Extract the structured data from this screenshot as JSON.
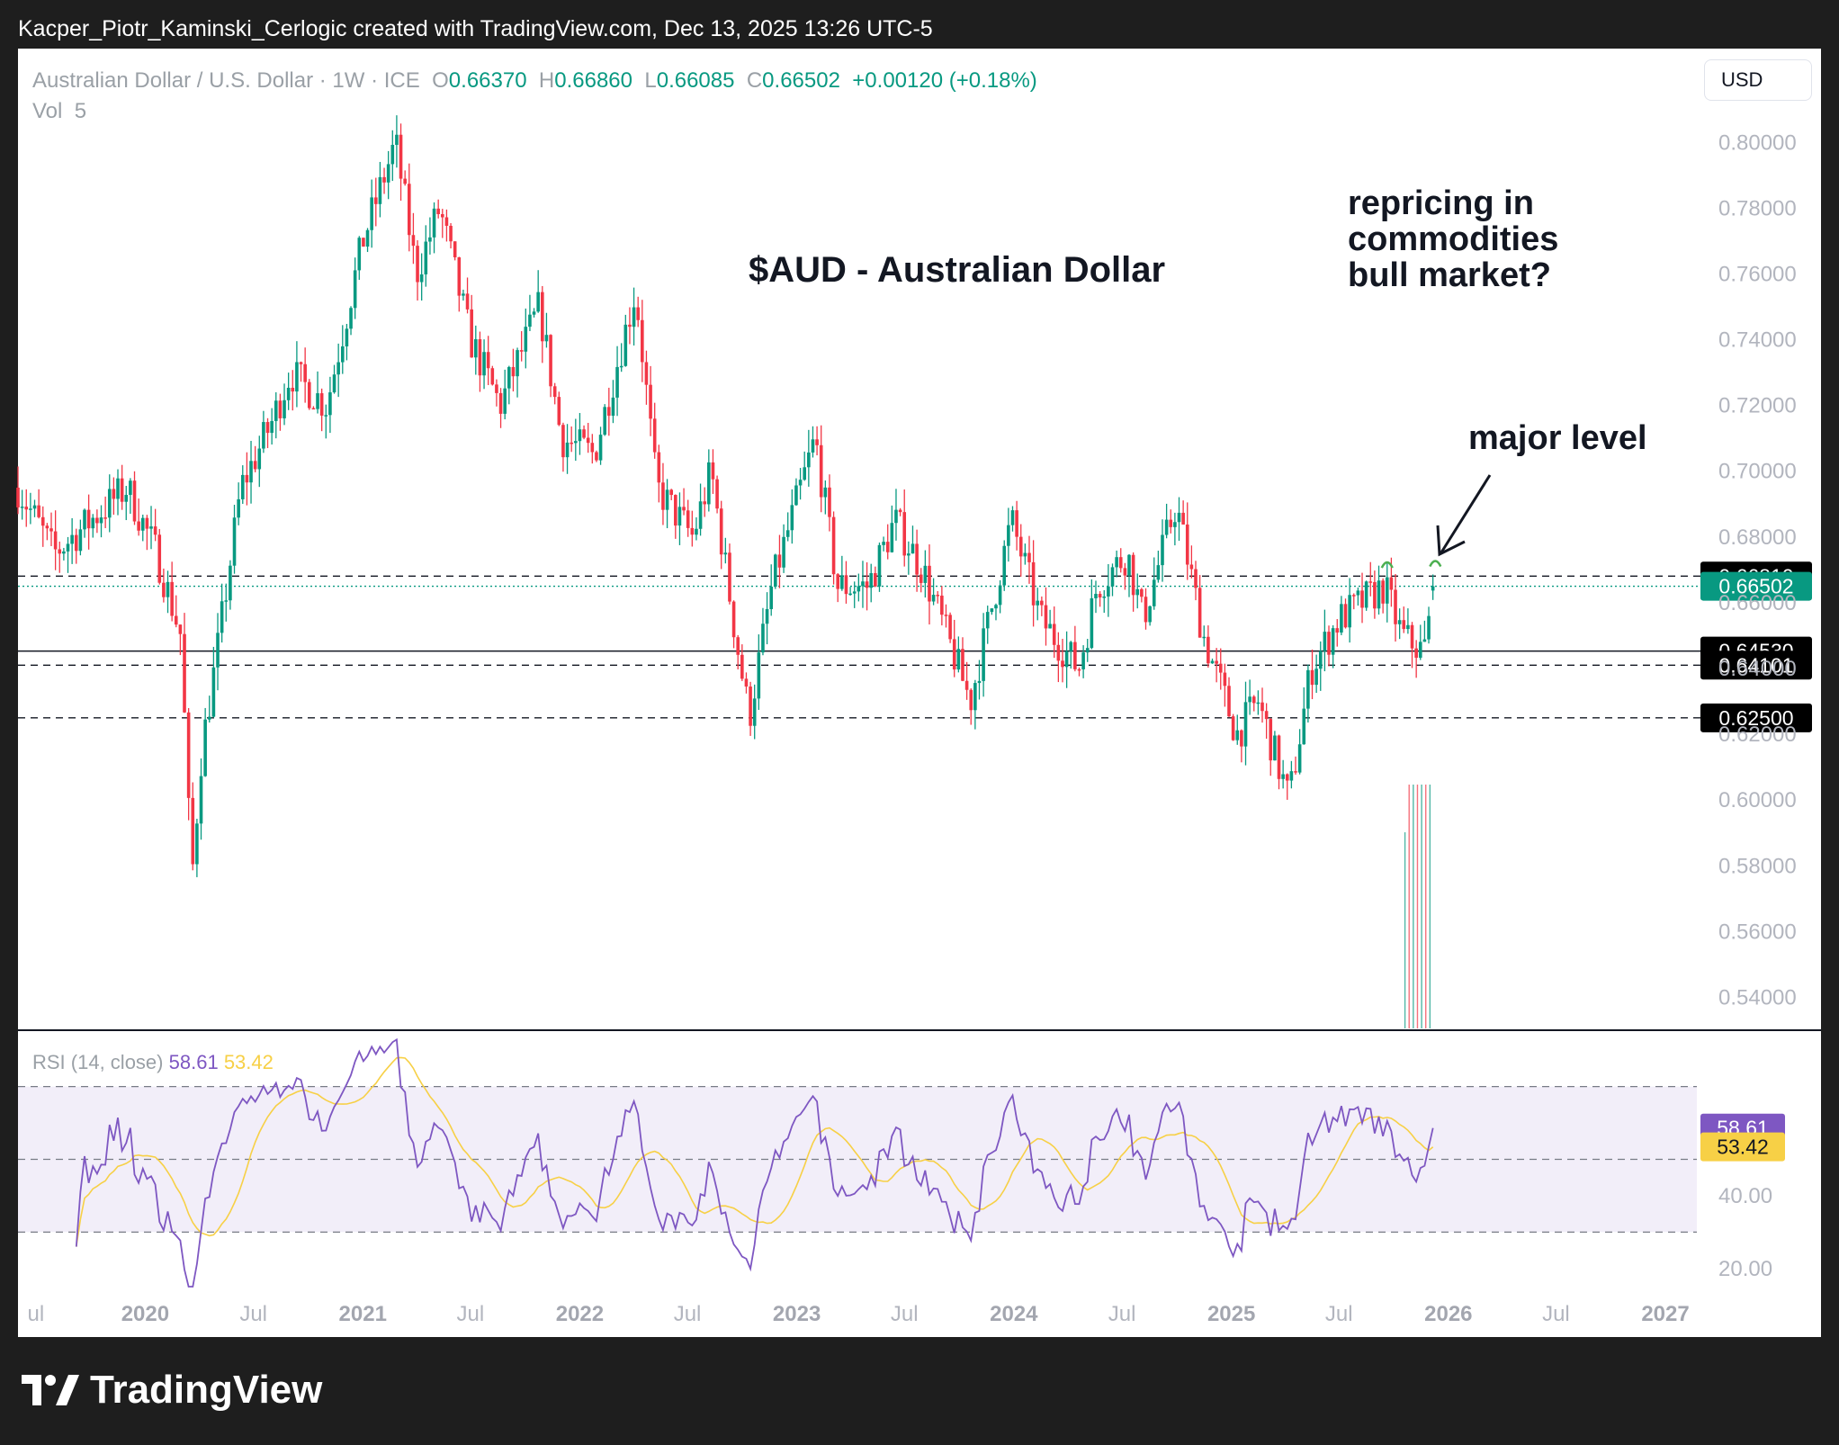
{
  "header": {
    "attribution": "Kacper_Piotr_Kaminski_Cerlogic created with TradingView.com, Dec 13, 2025 13:26 UTC-5"
  },
  "legend": {
    "symbol": "Australian Dollar / U.S. Dollar · 1W · ICE",
    "open_label": "O",
    "open": "0.66370",
    "high_label": "H",
    "high": "0.66860",
    "low_label": "L",
    "low": "0.66085",
    "close_label": "C",
    "close": "0.66502",
    "change": "+0.00120 (+0.18%)",
    "vol_label": "Vol",
    "vol": "5"
  },
  "currency_button": "USD",
  "annotations": {
    "title": "$AUD - Australian Dollar",
    "repricing": [
      "repricing in",
      "commodities",
      "bull market?"
    ],
    "major": "major level"
  },
  "rsi_legend": {
    "label": "RSI (14, close)",
    "rsi": "58.61",
    "ma": "53.42"
  },
  "brand": {
    "name": "TradingView"
  },
  "colors": {
    "up": "#089981",
    "down": "#f23645",
    "rsi": "#7e57c2",
    "rsi_ma": "#f7d046",
    "rsi_band": "#7e57c2"
  },
  "chart_data": [
    {
      "type": "candlestick",
      "interval": "weekly",
      "x_range": [
        "2019-06",
        "2027-03"
      ],
      "ylim": [
        0.53,
        0.805
      ],
      "yticks": [
        "0.80000",
        "0.78000",
        "0.76000",
        "0.74000",
        "0.72000",
        "0.70000",
        "0.68000",
        "0.66000",
        "0.64000",
        "0.62000",
        "0.60000",
        "0.58000",
        "0.56000",
        "0.54000"
      ],
      "xticks": [
        {
          "label": "ul",
          "date": "2019-07"
        },
        {
          "label": "2020",
          "date": "2020-01"
        },
        {
          "label": "Jul",
          "date": "2020-07"
        },
        {
          "label": "2021",
          "date": "2021-01"
        },
        {
          "label": "Jul",
          "date": "2021-07"
        },
        {
          "label": "2022",
          "date": "2022-01"
        },
        {
          "label": "Jul",
          "date": "2022-07"
        },
        {
          "label": "2023",
          "date": "2023-01"
        },
        {
          "label": "Jul",
          "date": "2023-07"
        },
        {
          "label": "2024",
          "date": "2024-01"
        },
        {
          "label": "Jul",
          "date": "2024-07"
        },
        {
          "label": "2025",
          "date": "2025-01"
        },
        {
          "label": "Jul",
          "date": "2025-07"
        },
        {
          "label": "2026",
          "date": "2026-01"
        },
        {
          "label": "Jul",
          "date": "2026-07"
        },
        {
          "label": "2027",
          "date": "2027-01"
        }
      ],
      "bold_years": [
        "2020",
        "2021",
        "2022",
        "2023",
        "2024",
        "2025",
        "2026",
        "2027"
      ],
      "price_path": [
        [
          "2019-06-01",
          0.695
        ],
        [
          "2019-08-01",
          0.675
        ],
        [
          "2019-10-01",
          0.685
        ],
        [
          "2019-12-01",
          0.695
        ],
        [
          "2020-01-20",
          0.675
        ],
        [
          "2020-03-01",
          0.65
        ],
        [
          "2020-03-19",
          0.575
        ],
        [
          "2020-04-05",
          0.615
        ],
        [
          "2020-05-01",
          0.645
        ],
        [
          "2020-06-10",
          0.695
        ],
        [
          "2020-08-01",
          0.715
        ],
        [
          "2020-09-01",
          0.73
        ],
        [
          "2020-11-01",
          0.72
        ],
        [
          "2021-01-01",
          0.77
        ],
        [
          "2021-02-25",
          0.8
        ],
        [
          "2021-04-01",
          0.76
        ],
        [
          "2021-05-10",
          0.78
        ],
        [
          "2021-07-01",
          0.74
        ],
        [
          "2021-08-20",
          0.72
        ],
        [
          "2021-10-25",
          0.75
        ],
        [
          "2021-12-01",
          0.71
        ],
        [
          "2022-01-25",
          0.705
        ],
        [
          "2022-04-05",
          0.755
        ],
        [
          "2022-05-10",
          0.695
        ],
        [
          "2022-07-10",
          0.68
        ],
        [
          "2022-08-10",
          0.7
        ],
        [
          "2022-09-20",
          0.65
        ],
        [
          "2022-10-13",
          0.625
        ],
        [
          "2022-11-20",
          0.665
        ],
        [
          "2023-02-01",
          0.71
        ],
        [
          "2023-03-10",
          0.665
        ],
        [
          "2023-05-01",
          0.665
        ],
        [
          "2023-06-15",
          0.685
        ],
        [
          "2023-08-01",
          0.67
        ],
        [
          "2023-10-20",
          0.63
        ],
        [
          "2023-12-28",
          0.685
        ],
        [
          "2024-02-15",
          0.655
        ],
        [
          "2024-04-19",
          0.64
        ],
        [
          "2024-05-20",
          0.665
        ],
        [
          "2024-07-10",
          0.675
        ],
        [
          "2024-08-05",
          0.655
        ],
        [
          "2024-09-30",
          0.69
        ],
        [
          "2024-11-15",
          0.65
        ],
        [
          "2025-01-10",
          0.62
        ],
        [
          "2025-02-15",
          0.63
        ],
        [
          "2025-04-08",
          0.6
        ],
        [
          "2025-05-15",
          0.64
        ],
        [
          "2025-07-01",
          0.655
        ],
        [
          "2025-09-15",
          0.665
        ],
        [
          "2025-10-15",
          0.65
        ],
        [
          "2025-11-20",
          0.645
        ],
        [
          "2025-12-12",
          0.665
        ]
      ],
      "last": {
        "open": 0.6637,
        "high": 0.6686,
        "low": 0.66085,
        "close": 0.66502
      },
      "horizontal_levels": [
        {
          "value": 0.6681,
          "label": "0.66810",
          "style": "dashed"
        },
        {
          "value": 0.66502,
          "label": "0.66502",
          "style": "dotted"
        },
        {
          "value": 0.6453,
          "label": "0.64530",
          "style": "solid"
        },
        {
          "value": 0.64101,
          "label": "0.64101",
          "style": "dashed"
        },
        {
          "value": 0.625,
          "label": "0.62500",
          "style": "dashed"
        }
      ]
    },
    {
      "type": "line",
      "name": "RSI (14, close)",
      "ylim": [
        15,
        85
      ],
      "yticks": [
        "40.00",
        "20.00"
      ],
      "bands": [
        70,
        50,
        30
      ],
      "rsi_last": 58.61,
      "ma_last": 53.42
    }
  ]
}
